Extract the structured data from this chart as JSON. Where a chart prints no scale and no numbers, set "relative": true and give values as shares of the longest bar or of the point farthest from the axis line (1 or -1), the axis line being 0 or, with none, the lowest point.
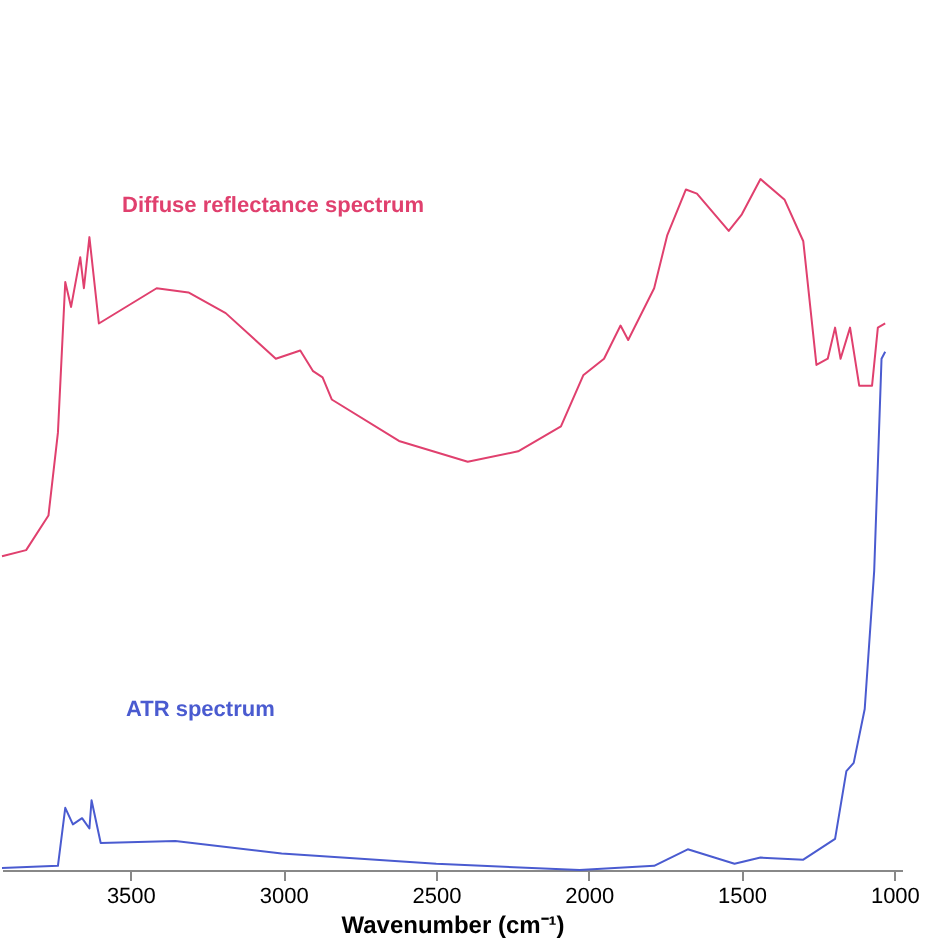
{
  "chart_data": {
    "type": "line",
    "relative": true,
    "xlabel": "Wavenumber (cm⁻¹)",
    "xlim": [
      3920,
      975
    ],
    "xticks": [
      3500,
      3000,
      2500,
      2000,
      1500,
      1000
    ],
    "grid": false,
    "marker": "none",
    "line_style": "solid",
    "series": [
      {
        "name": "Diffuse reflectance spectrum",
        "color": "#e0406e",
        "x": [
          3920,
          3841,
          3768,
          3737,
          3713,
          3694,
          3664,
          3652,
          3634,
          3603,
          3414,
          3310,
          3188,
          3024,
          2944,
          2902,
          2871,
          2841,
          2621,
          2396,
          2231,
          2091,
          2018,
          1950,
          1896,
          1871,
          1786,
          1743,
          1682,
          1646,
          1542,
          1499,
          1438,
          1359,
          1298,
          1255,
          1218,
          1194,
          1176,
          1145,
          1115,
          1073,
          1054,
          1030
        ],
        "values": [
          0.454,
          0.463,
          0.513,
          0.633,
          0.851,
          0.815,
          0.887,
          0.842,
          0.916,
          0.791,
          0.842,
          0.836,
          0.806,
          0.74,
          0.752,
          0.722,
          0.713,
          0.681,
          0.621,
          0.591,
          0.606,
          0.642,
          0.716,
          0.74,
          0.788,
          0.767,
          0.842,
          0.919,
          0.985,
          0.979,
          0.925,
          0.949,
          1.0,
          0.97,
          0.91,
          0.731,
          0.74,
          0.785,
          0.74,
          0.785,
          0.701,
          0.701,
          0.785,
          0.791
        ]
      },
      {
        "name": "ATR spectrum",
        "color": "#4a5bd0",
        "x": [
          3920,
          3737,
          3713,
          3688,
          3658,
          3634,
          3627,
          3597,
          3353,
          3005,
          2499,
          2030,
          1786,
          1676,
          1523,
          1438,
          1298,
          1194,
          1157,
          1133,
          1097,
          1066,
          1042,
          1030
        ],
        "values": [
          0.003,
          0.006,
          0.09,
          0.066,
          0.075,
          0.06,
          0.101,
          0.039,
          0.042,
          0.024,
          0.009,
          0.0,
          0.006,
          0.03,
          0.009,
          0.018,
          0.015,
          0.045,
          0.143,
          0.155,
          0.233,
          0.433,
          0.74,
          0.75
        ]
      }
    ]
  }
}
